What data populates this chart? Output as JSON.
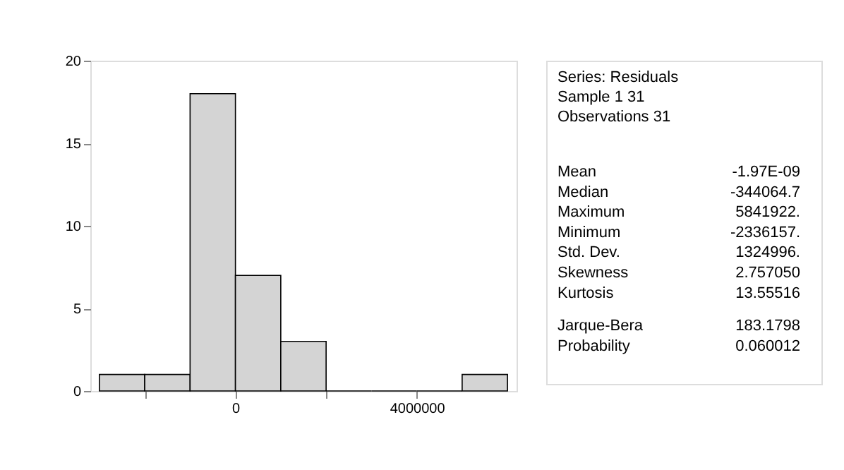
{
  "chart_data": [
    {
      "type": "histogram",
      "bins": [
        -3000000,
        -2000000,
        -1000000,
        0,
        1000000,
        2000000,
        3000000,
        4000000,
        5000000,
        6000000
      ],
      "values": [
        1,
        1,
        18,
        7,
        3,
        0,
        0,
        0,
        1
      ],
      "color": "#d4d4d4",
      "xlim": [
        -3200000,
        6200000
      ],
      "xticks": [
        {
          "value": -2000000,
          "label": null
        },
        0,
        {
          "value": 2000000,
          "label": null
        },
        4000000
      ],
      "ylim": [
        0,
        20
      ],
      "yticks": [
        0,
        5,
        10,
        15,
        20
      ],
      "grid": false
    },
    {
      "type": "other",
      "annotations": [
        "Series: Residuals",
        "Sample 1 31",
        "Observations 31",
        "Mean",
        "-1.97E-09",
        "Median",
        "-344064.7",
        "Maximum",
        "5841922.",
        "Minimum",
        "-2336157.",
        "Std. Dev.",
        "1324996.",
        "Skewness",
        "2.757050",
        "Kurtosis",
        "13.55516",
        "Jarque-Bera",
        "183.1798",
        "Probability",
        "0.060012"
      ]
    }
  ]
}
